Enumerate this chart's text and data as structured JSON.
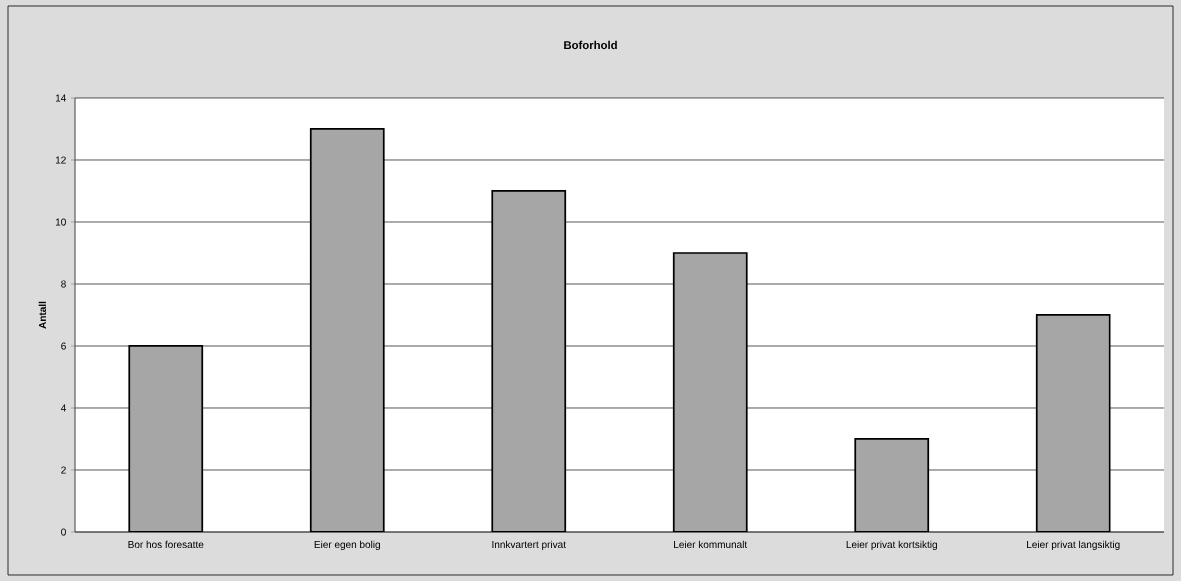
{
  "chart_data": {
    "type": "bar",
    "title": "Boforhold",
    "ylabel": "Antall",
    "categories": [
      "Bor hos foresatte",
      "Eier egen bolig",
      "Innkvartert privat",
      "Leier kommunalt",
      "Leier privat kortsiktig",
      "Leier privat langsiktig"
    ],
    "values": [
      6,
      13,
      11,
      9,
      3,
      7
    ],
    "color": "#a6a6a6",
    "ylim": [
      0,
      14
    ],
    "yticks": [
      0,
      2,
      4,
      6,
      8,
      10,
      12,
      14
    ],
    "grid": "y"
  }
}
